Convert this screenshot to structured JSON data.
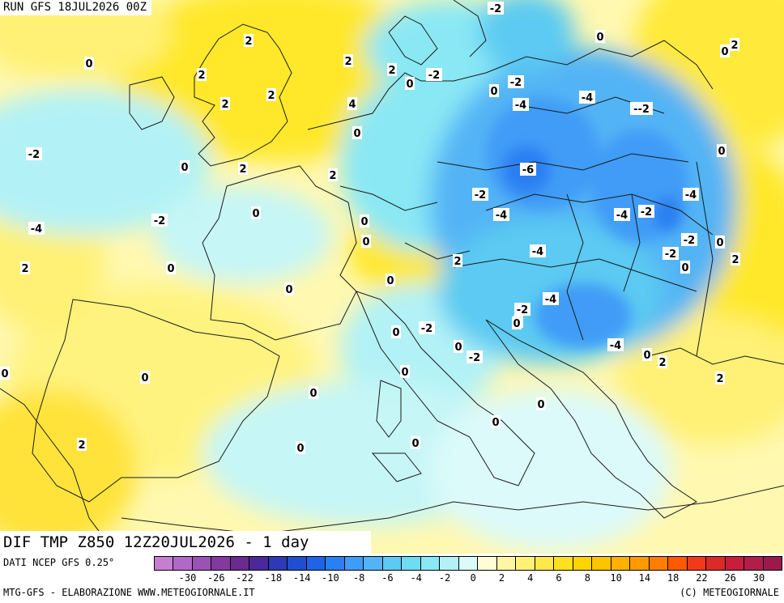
{
  "header": {
    "run_label": "RUN GFS 18JUL2026 00Z"
  },
  "title": "DIF TMP Z850 12Z20JUL2026 - 1 day",
  "footer": {
    "data_source": "DATI NCEP GFS 0.25°",
    "credits": "MTG-GFS - ELABORAZIONE WWW.METEOGIORNALE.IT",
    "copyright": "(C) METEOGIORNALE"
  },
  "legend": {
    "colors": [
      "#c77ed0",
      "#b169c7",
      "#9b52b5",
      "#823a9e",
      "#6a2a8e",
      "#4a2a9a",
      "#2f38b5",
      "#1f4ed0",
      "#1e64e6",
      "#2a7ff2",
      "#3f9cf7",
      "#52b4f5",
      "#5ccaf2",
      "#6edcf2",
      "#8ae8f4",
      "#b2f2f6",
      "#dcfafa",
      "#fffcd6",
      "#fff6a3",
      "#fff176",
      "#ffe84a",
      "#ffe01f",
      "#ffd400",
      "#ffc400",
      "#ffb000",
      "#ff9a00",
      "#ff7d00",
      "#ff5a00",
      "#f23a1a",
      "#dc2a2a",
      "#c81e3c",
      "#b01e4a",
      "#9a1a4e"
    ],
    "tick_labels": [
      "-30",
      "-26",
      "-22",
      "-18",
      "-14",
      "-10",
      "-8",
      "-6",
      "-4",
      "-2",
      "0",
      "2",
      "4",
      "6",
      "8",
      "10",
      "14",
      "18",
      "22",
      "26",
      "30"
    ]
  },
  "map_labels": [
    "-2",
    "0",
    "2",
    "2",
    "2",
    "2",
    "4",
    "0",
    "2",
    "2",
    "-2",
    "0",
    "-2",
    "-4",
    "-4",
    "--2",
    "0",
    "-2",
    "0",
    "2",
    "0",
    "2",
    "-6",
    "-2",
    "0",
    "-2",
    "0",
    "-4",
    "-4",
    "-2",
    "-4",
    "2",
    "0",
    "-2",
    "0",
    "0",
    "-4",
    "-4",
    "-2",
    "0",
    "2",
    "0",
    "-4",
    "0",
    "-2",
    "-2",
    "0",
    "-4",
    "0",
    "2",
    "0",
    "2",
    "0",
    "0",
    "0",
    "0",
    "2",
    "2",
    "0",
    "0",
    "0",
    "0",
    "0",
    "0",
    "2",
    "-2",
    "0",
    "0"
  ]
}
